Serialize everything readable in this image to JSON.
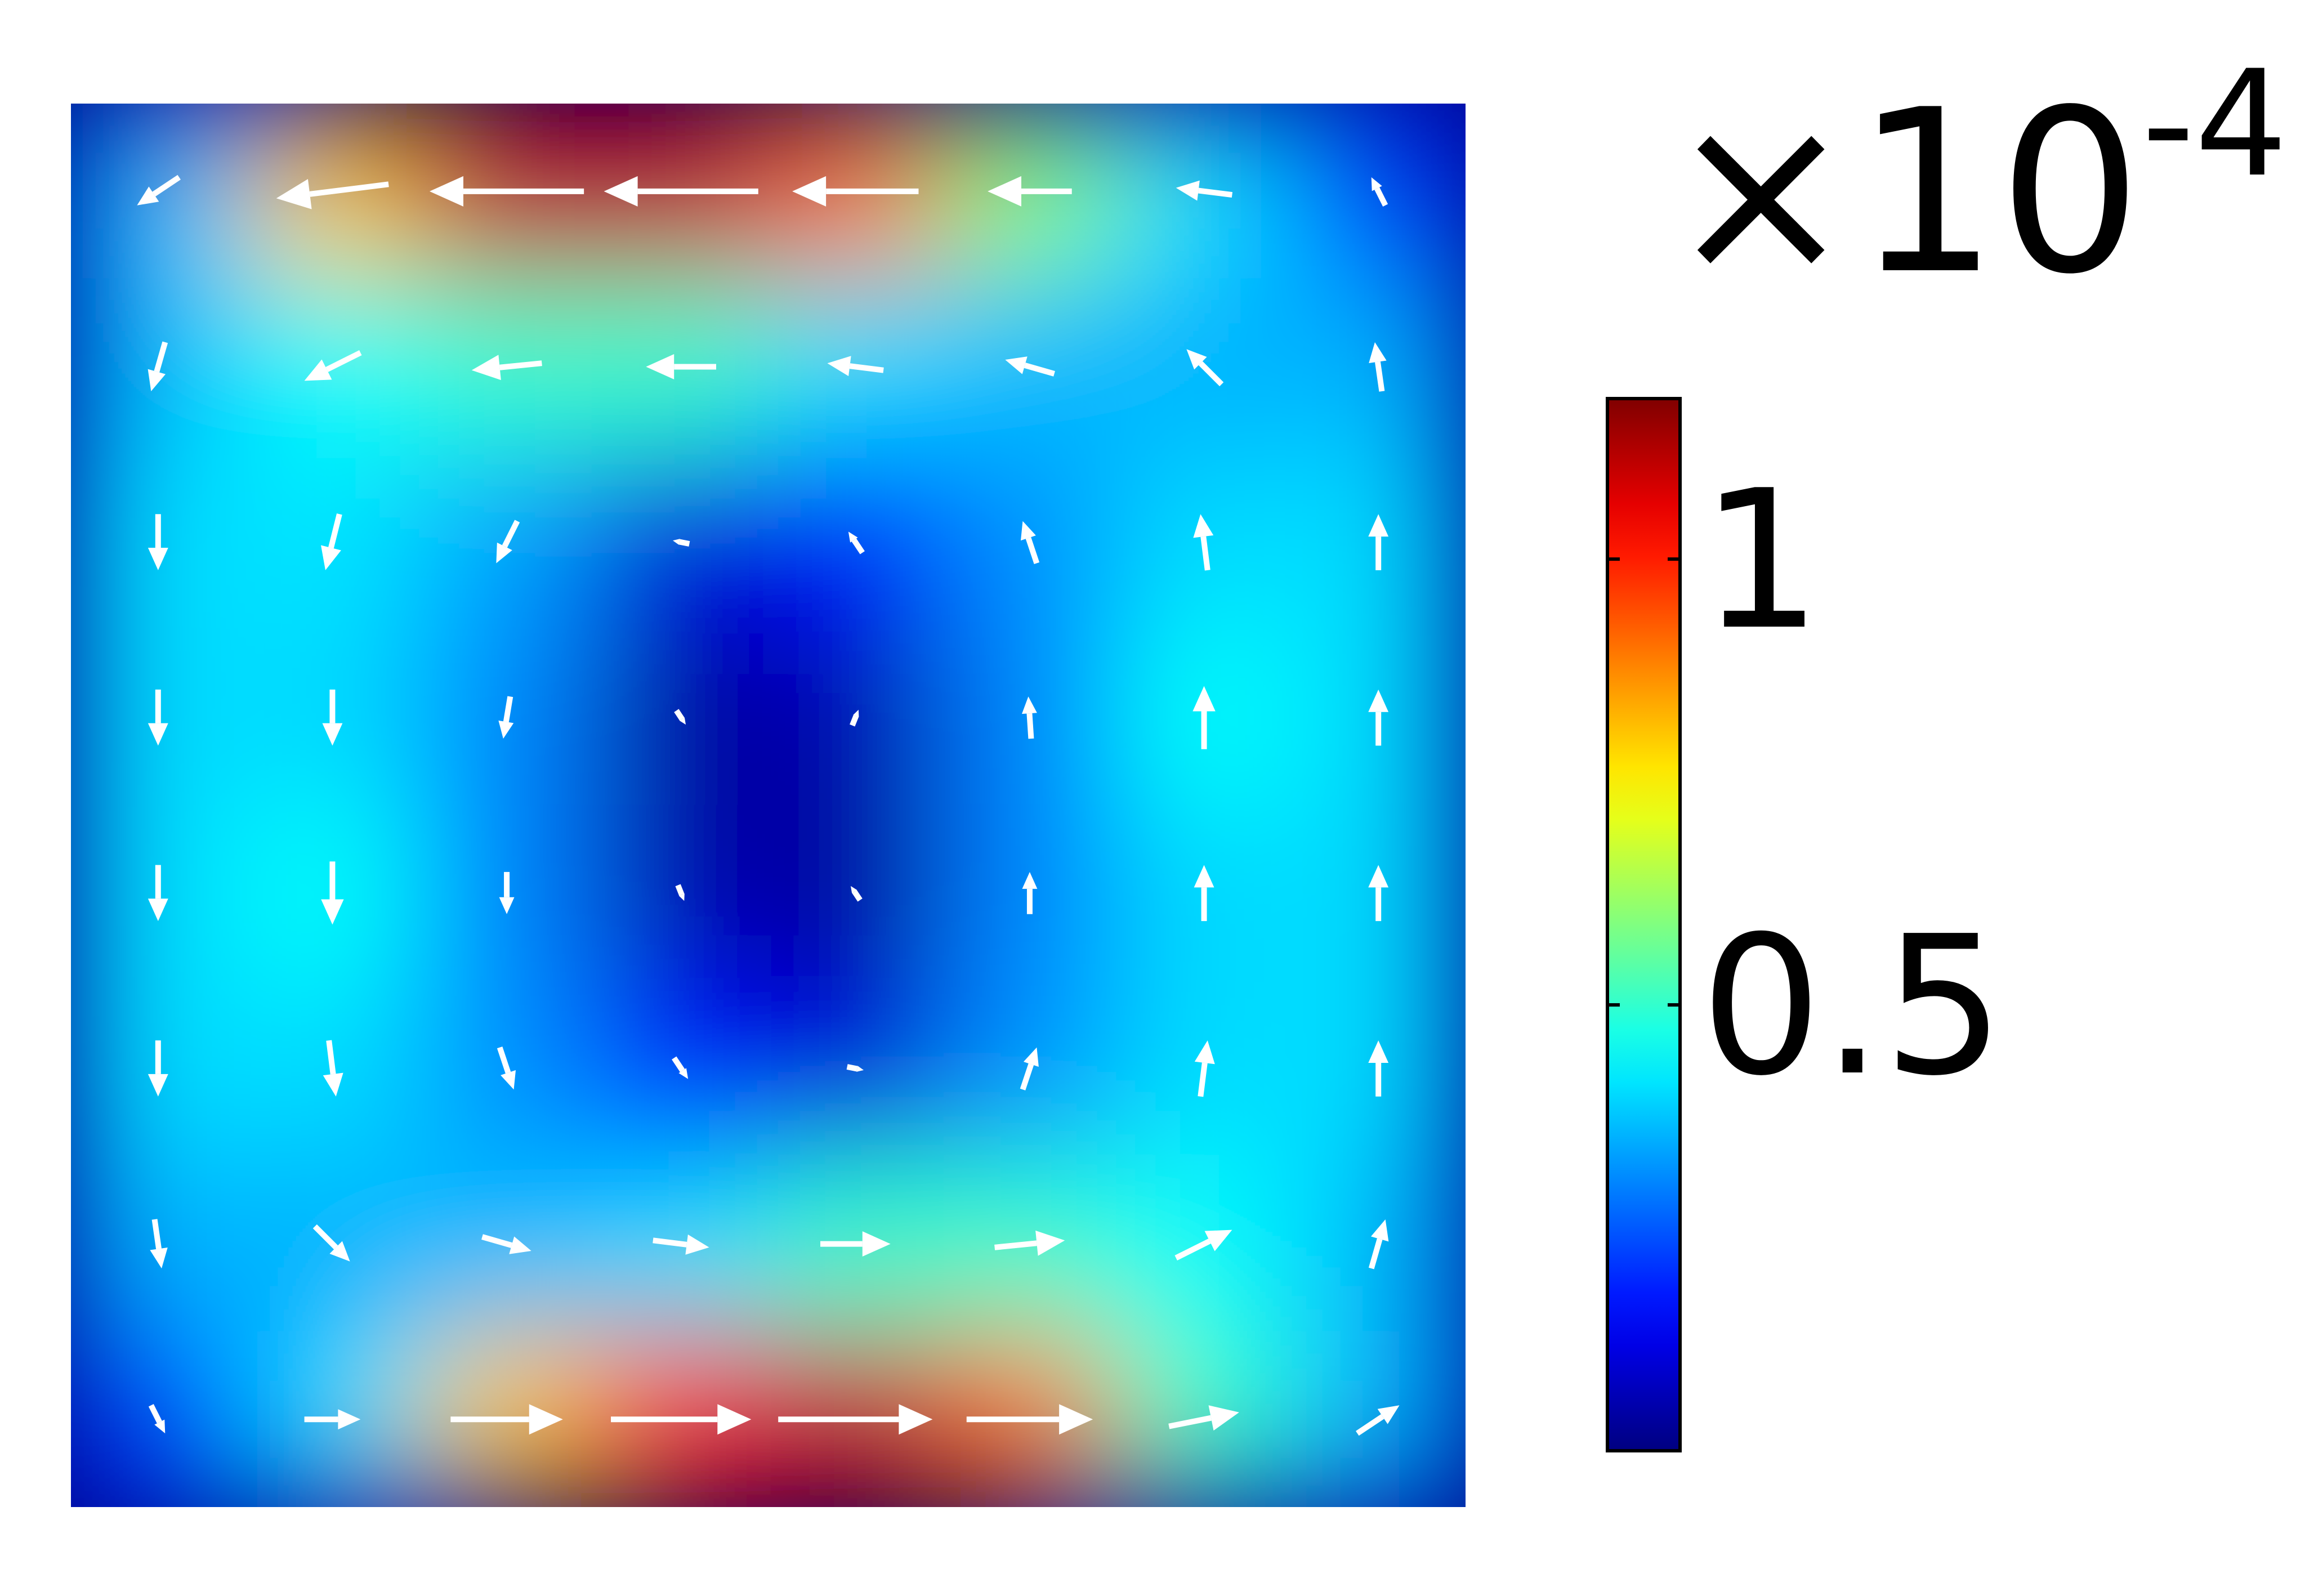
{
  "chart_data": {
    "type": "quiver",
    "colormap": "jet",
    "arrow_color": "#ffffff",
    "clim": [
      0,
      1.18
    ],
    "cticks": [
      0.5,
      1
    ],
    "colorbar_label": {
      "base": "×10",
      "exponent": "-4"
    },
    "u": [
      [
        -0.3,
        -0.8,
        -1.1,
        -1.1,
        -0.9,
        -0.6,
        -0.4,
        -0.1
      ],
      [
        -0.1,
        -0.4,
        -0.5,
        -0.5,
        -0.4,
        -0.35,
        -0.25,
        -0.05
      ],
      [
        0,
        -0.1,
        -0.15,
        -0.1,
        -0.1,
        -0.1,
        -0.05,
        0
      ],
      [
        0,
        0,
        -0.05,
        0.02,
        0.02,
        -0.02,
        0,
        0
      ],
      [
        0,
        0,
        0,
        0.02,
        -0.02,
        0,
        0,
        0
      ],
      [
        0,
        0.05,
        0.1,
        0.1,
        0.1,
        0.1,
        0.05,
        0
      ],
      [
        0.05,
        0.25,
        0.35,
        0.4,
        0.5,
        0.5,
        0.4,
        0.1
      ],
      [
        0.1,
        0.4,
        0.8,
        1.0,
        1.1,
        0.9,
        0.5,
        0.3
      ]
    ],
    "v": [
      [
        -0.2,
        -0.1,
        0,
        0,
        0,
        0,
        0.05,
        0.2
      ],
      [
        -0.35,
        -0.2,
        -0.05,
        0,
        0.05,
        0.1,
        0.25,
        0.35
      ],
      [
        -0.4,
        -0.4,
        -0.3,
        0.02,
        0.15,
        0.3,
        0.4,
        0.4
      ],
      [
        -0.4,
        -0.4,
        -0.3,
        -0.03,
        0.05,
        0.3,
        0.45,
        0.4
      ],
      [
        -0.4,
        -0.45,
        -0.3,
        -0.05,
        0.03,
        0.3,
        0.4,
        0.4
      ],
      [
        -0.4,
        -0.4,
        -0.3,
        -0.15,
        -0.02,
        0.3,
        0.4,
        0.4
      ],
      [
        -0.35,
        -0.25,
        -0.1,
        -0.05,
        0,
        0.05,
        0.2,
        0.35
      ],
      [
        -0.2,
        0,
        0,
        0,
        0,
        0,
        0.1,
        0.2
      ]
    ]
  }
}
